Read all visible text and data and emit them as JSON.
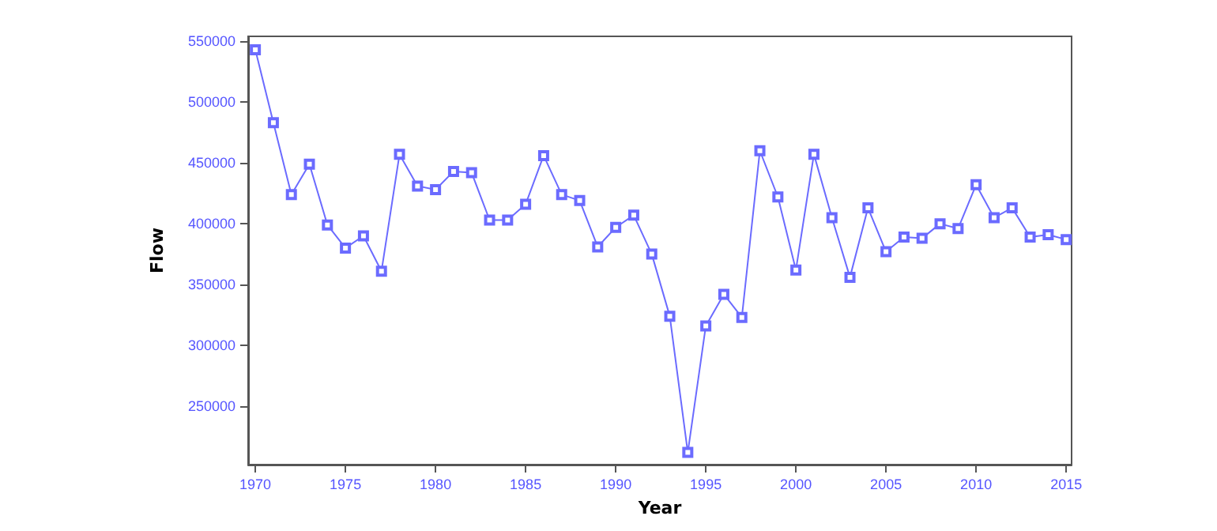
{
  "chart_data": {
    "type": "line",
    "xlabel": "Year",
    "ylabel": "Flow",
    "x": [
      1970,
      1971,
      1972,
      1973,
      1974,
      1975,
      1976,
      1977,
      1978,
      1979,
      1980,
      1981,
      1982,
      1983,
      1984,
      1985,
      1986,
      1987,
      1988,
      1989,
      1990,
      1991,
      1992,
      1993,
      1994,
      1995,
      1996,
      1997,
      1998,
      1999,
      2000,
      2001,
      2002,
      2003,
      2004,
      2005,
      2006,
      2007,
      2008,
      2009,
      2010,
      2011,
      2012,
      2013,
      2014,
      2015
    ],
    "series": [
      {
        "color": "#6b6bff",
        "values": [
          543000,
          483000,
          424000,
          449000,
          399000,
          380000,
          390000,
          361000,
          457000,
          431000,
          428000,
          443000,
          442000,
          403000,
          403000,
          416000,
          456000,
          424000,
          419000,
          381000,
          397000,
          407000,
          375000,
          324000,
          212000,
          316000,
          342000,
          323000,
          460000,
          422000,
          362000,
          457000,
          405000,
          356000,
          413000,
          377000,
          389000,
          388000,
          400000,
          396000,
          432000,
          405000,
          413000,
          389000,
          391000,
          387000
        ]
      }
    ],
    "xlim": [
      1969.6,
      2015.3
    ],
    "xticks": [
      1970,
      1975,
      1980,
      1985,
      1990,
      1995,
      2000,
      2005,
      2010,
      2015
    ],
    "ylim": [
      202000,
      554000
    ],
    "yticks": [
      250000,
      300000,
      350000,
      400000,
      450000,
      500000,
      550000
    ],
    "grid": false,
    "marker": "square",
    "line_style": "solid"
  }
}
